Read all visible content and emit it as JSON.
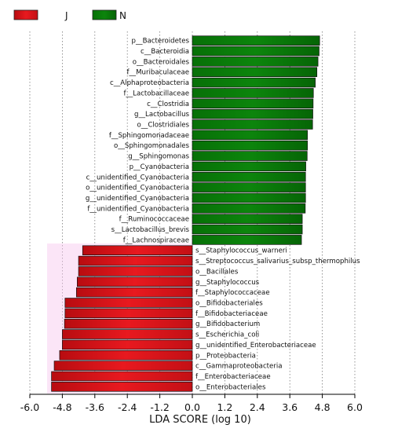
{
  "chart_data": {
    "type": "bar",
    "orientation": "horizontal",
    "title": "",
    "xlabel": "LDA SCORE (log 10)",
    "ylabel": "",
    "xlim": [
      -6.0,
      6.0
    ],
    "xticks": [
      "-6.0",
      "-4.8",
      "-3.6",
      "-2.4",
      "-1.2",
      "0.0",
      "1.2",
      "2.4",
      "3.6",
      "4.8",
      "6.0"
    ],
    "grid": "vertical dotted",
    "legend_position": "top-left",
    "legend": [
      {
        "name": "J",
        "color": "#e8191f"
      },
      {
        "name": "N",
        "color": "#0a7a0a"
      }
    ],
    "series": [
      {
        "name": "N",
        "color": "#0a7a0a",
        "categories": [
          "p__Bacteroidetes",
          "c__Bacteroidia",
          "o__Bacteroidales",
          "f__Muribaculaceae",
          "c__Alphaproteobacteria",
          "f__Lactobacillaceae",
          "c__Clostridia",
          "g__Lactobacillus",
          "o__Clostridiales",
          "f__Sphingomonadaceae",
          "o__Sphingomonadales",
          "g__Sphingomonas",
          "p__Cyanobacteria",
          "c__unidentified_Cyanobacteria",
          "o__unidentified_Cyanobacteria",
          "g__unidentified_Cyanobacteria",
          "f__unidentified_Cyanobacteria",
          "f__Ruminococcaceae",
          "s__Lactobacillus_brevis",
          "f__Lachnospiraceae"
        ],
        "values": [
          4.7,
          4.68,
          4.64,
          4.6,
          4.54,
          4.47,
          4.46,
          4.45,
          4.44,
          4.25,
          4.25,
          4.24,
          4.19,
          4.18,
          4.18,
          4.18,
          4.17,
          4.06,
          4.06,
          4.03
        ]
      },
      {
        "name": "J",
        "color": "#e8191f",
        "categories": [
          "s__Staphylococcus_warneri",
          "s__Streptococcus_salivarius_subsp_thermophilus",
          "o__Bacillales",
          "g__Staphylococcus",
          "f__Staphylococcaceae",
          "o__Bifidobacteriales",
          "f__Bifidobacteriaceae",
          "g__Bifidobacterium",
          "s__Escherichia_coli",
          "g__unidentified_Enterobacteriaceae",
          "p__Proteobacteria",
          "c__Gammaproteobacteria",
          "f__Enterobacteriaceae",
          "o__Enterobacteriales"
        ],
        "values": [
          -4.05,
          -4.2,
          -4.2,
          -4.25,
          -4.28,
          -4.7,
          -4.7,
          -4.72,
          -4.8,
          -4.8,
          -4.9,
          -5.1,
          -5.2,
          -5.2
        ]
      }
    ]
  }
}
